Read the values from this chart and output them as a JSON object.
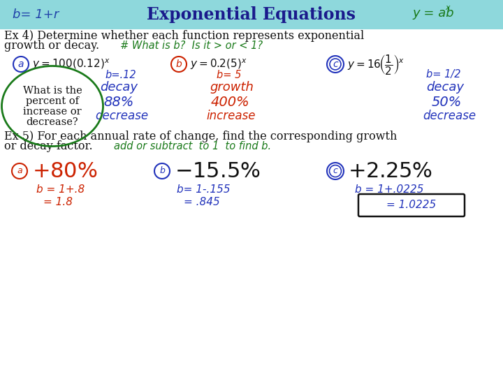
{
  "title": "Exponential Equations",
  "title_color": "#1a1a8c",
  "header_bg": "#8ed8dc",
  "bg_color": "#ffffff",
  "header_left_text": "b= 1+r",
  "header_left_color": "#2244aa",
  "header_right_color": "#1a7a1a",
  "ex4_line1": "Ex 4) Determine whether each function represents exponential",
  "ex4_line2": "growth or decay.",
  "ex4_handwritten": "# What is b?  Is it > or < 1?",
  "ex4_handwritten_color": "#1a7a1a",
  "func_a_b": "b= .12",
  "func_a_type": "decay",
  "func_a_pct": "88%",
  "func_a_pct_label": "decrease",
  "func_b_b": "b= 5",
  "func_b_type": "growth",
  "func_b_pct": "400%",
  "func_b_pct_label": "increase",
  "func_c_b": "b= 1/2",
  "func_c_type": "decay",
  "func_c_pct": "50%",
  "func_c_pct_label": "decrease",
  "ex5_line1": "Ex 5) For each annual rate of change, find the corresponding growth",
  "ex5_line2": "or decay factor.",
  "ex5_handwritten": "add or subtract  to 1  to find b.",
  "ex5_handwritten_color": "#1a7a1a",
  "rate_a_pct": "+80%",
  "rate_a_b1": "b = 1+.8",
  "rate_a_b2": "= 1.8",
  "rate_b_pct": "-15.5%",
  "rate_b_b1": "b= 1-.155",
  "rate_b_b2": "= .845",
  "rate_c_pct": "+2.25%",
  "rate_c_b1": "b = 1+.0225",
  "rate_c_b2": "= 1.0225",
  "blue": "#2233bb",
  "red": "#cc2200",
  "green": "#1a7a1a",
  "black": "#111111"
}
